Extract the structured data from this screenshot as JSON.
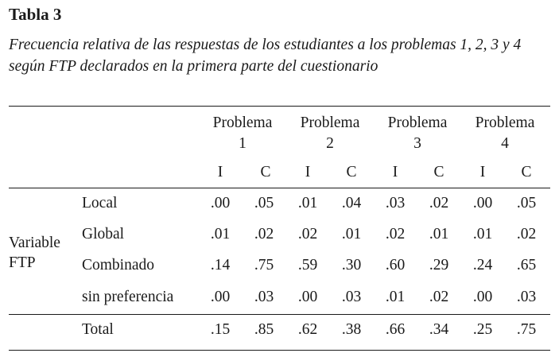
{
  "table": {
    "label": "Tabla 3",
    "caption": "Frecuencia relativa de las respuestas de los estudiantes a los problemas 1, 2, 3 y 4 según FTP declarados en la primera parte del cuestionario",
    "variable_label_line1": "Variable",
    "variable_label_line2": "FTP",
    "problems": [
      {
        "line1": "Problema",
        "line2": "1"
      },
      {
        "line1": "Problema",
        "line2": "2"
      },
      {
        "line1": "Problema",
        "line2": "3"
      },
      {
        "line1": "Problema",
        "line2": "4"
      }
    ],
    "subcolumns": [
      "I",
      "C",
      "I",
      "C",
      "I",
      "C",
      "I",
      "C"
    ],
    "rows": [
      {
        "label": "Local",
        "values": [
          ".00",
          ".05",
          ".01",
          ".04",
          ".03",
          ".02",
          ".00",
          ".05"
        ]
      },
      {
        "label": "Global",
        "values": [
          ".01",
          ".02",
          ".02",
          ".01",
          ".02",
          ".01",
          ".01",
          ".02"
        ]
      },
      {
        "label": "Combinado",
        "values": [
          ".14",
          ".75",
          ".59",
          ".30",
          ".60",
          ".29",
          ".24",
          ".65"
        ]
      },
      {
        "label": "sin preferencia",
        "values": [
          ".00",
          ".03",
          ".00",
          ".03",
          ".01",
          ".02",
          ".00",
          ".03"
        ]
      }
    ],
    "total": {
      "label": "Total",
      "values": [
        ".15",
        ".85",
        ".62",
        ".38",
        ".66",
        ".34",
        ".25",
        ".75"
      ]
    }
  }
}
